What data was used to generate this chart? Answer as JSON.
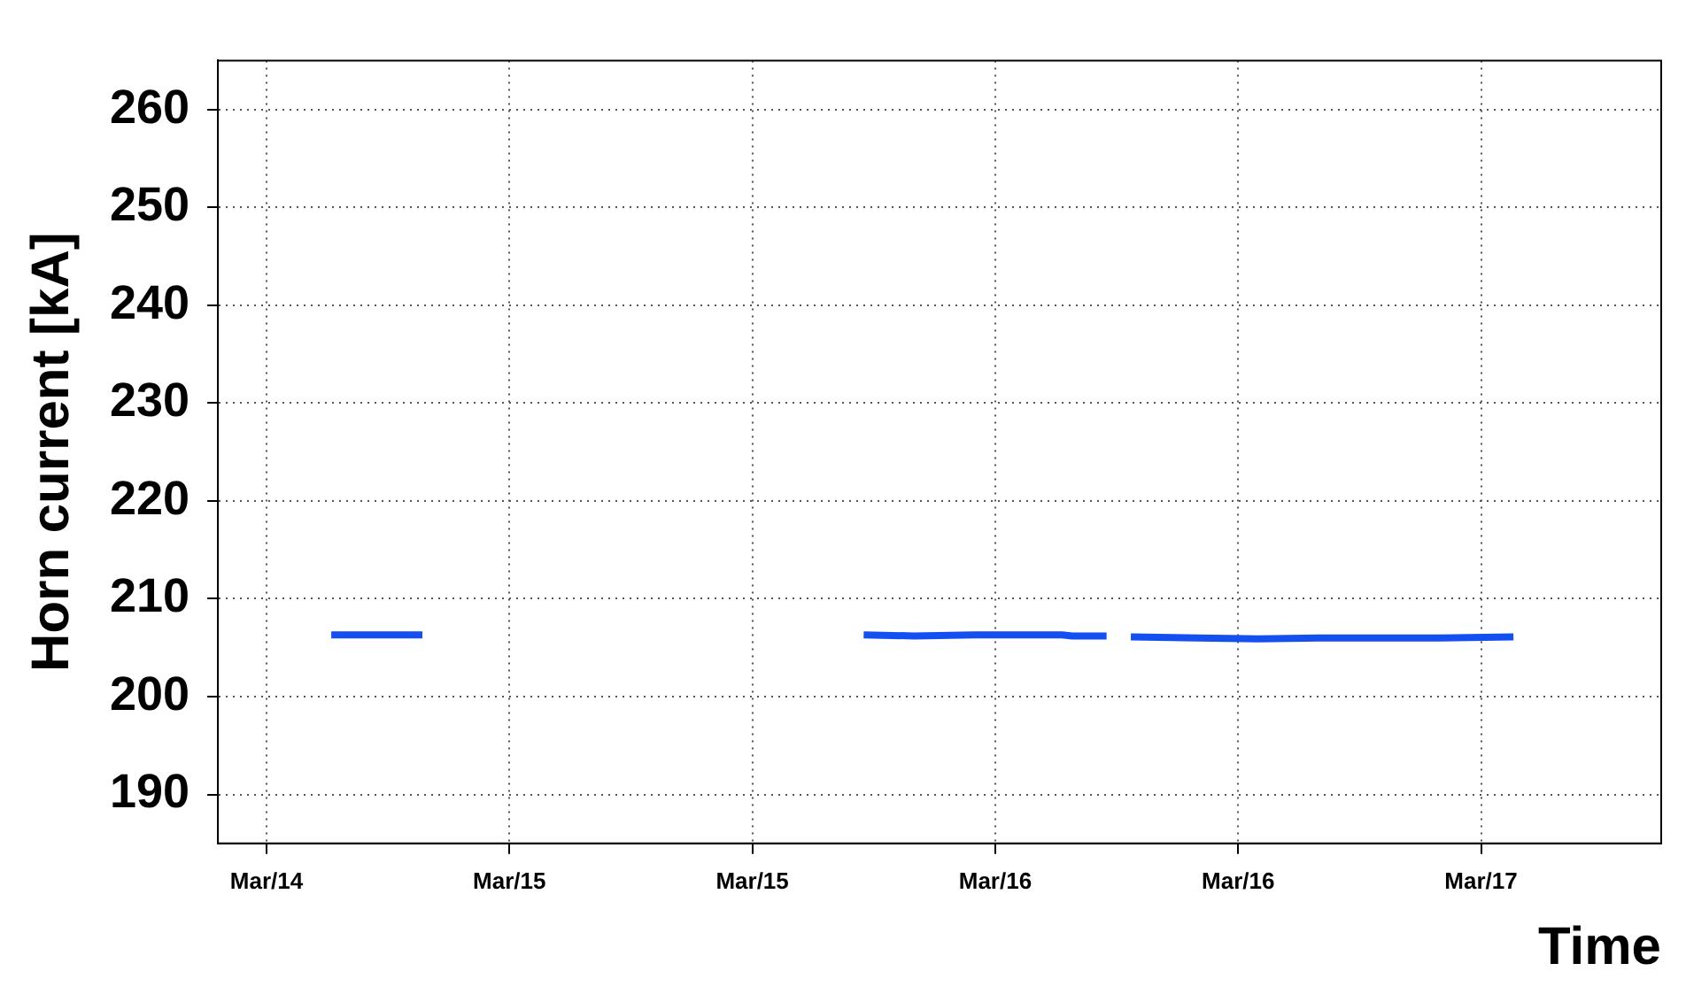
{
  "chart_data": {
    "type": "line",
    "xlabel": "Time",
    "ylabel": "Horn current [kA]",
    "x": [
      "--03-14T15:12",
      "--03-14T16:30",
      "--03-14T18:00",
      "--03-14T19:42",
      "--03-15T06:00",
      "--03-15T17:30",
      "--03-15T20:00",
      "--03-15T23:00",
      "--03-16T02:00",
      "--03-16T03:18",
      "--03-16T03:48",
      "--03-16T05:30",
      "--03-16T06:00",
      "--03-16T06:42",
      "--03-16T10:00",
      "--03-16T13:00",
      "--03-16T16:00",
      "--03-16T19:00",
      "--03-16T22:00",
      "--03-17T01:36"
    ],
    "series": [
      {
        "color": "#1450f0",
        "values": [
          206.3,
          206.3,
          206.3,
          206.3,
          null,
          206.3,
          206.2,
          206.3,
          206.3,
          206.3,
          206.2,
          206.2,
          null,
          206.1,
          206.0,
          205.9,
          206.0,
          206.0,
          206.0,
          206.1
        ]
      }
    ],
    "xlim": [
      "--03-14T09:36",
      "--03-17T08:54"
    ],
    "xticks": [
      {
        "value": "--03-14T12:00",
        "label": "Mar/14"
      },
      {
        "value": "--03-15T00:00",
        "label": "Mar/15"
      },
      {
        "value": "--03-15T12:00",
        "label": "Mar/15"
      },
      {
        "value": "--03-16T00:00",
        "label": "Mar/16"
      },
      {
        "value": "--03-16T12:00",
        "label": "Mar/16"
      },
      {
        "value": "--03-17T00:00",
        "label": "Mar/17"
      }
    ],
    "ylim": [
      185,
      265
    ],
    "yticks": [
      190,
      200,
      210,
      220,
      230,
      240,
      250,
      260
    ],
    "grid": true,
    "line_style": "solid",
    "marker": "none"
  }
}
